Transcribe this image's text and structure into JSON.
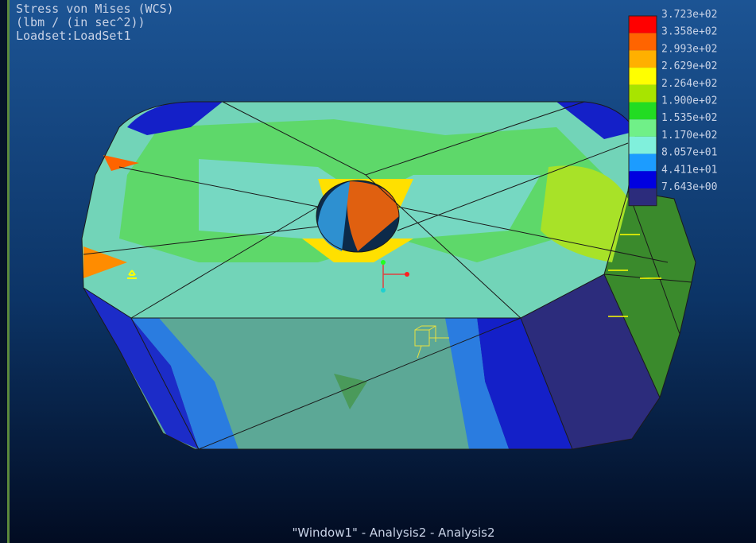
{
  "header": {
    "lines": [
      "Stress von Mises (WCS)",
      "(lbm / (in sec^2))",
      "Loadset:LoadSet1"
    ]
  },
  "legend": {
    "labels": [
      "3.723e+02",
      "3.358e+02",
      "2.993e+02",
      "2.629e+02",
      "2.264e+02",
      "1.900e+02",
      "1.535e+02",
      "1.170e+02",
      "8.057e+01",
      "4.411e+01",
      "7.643e+00"
    ],
    "colors": [
      "#ff0000",
      "#ff6400",
      "#ffb000",
      "#ffff00",
      "#a8e400",
      "#22dc22",
      "#70f088",
      "#80f0dc",
      "#1c9cff",
      "#0000e0",
      "#2c2c7c"
    ]
  },
  "caption": "\"Window1\" - Analysis2 - Analysis2"
}
